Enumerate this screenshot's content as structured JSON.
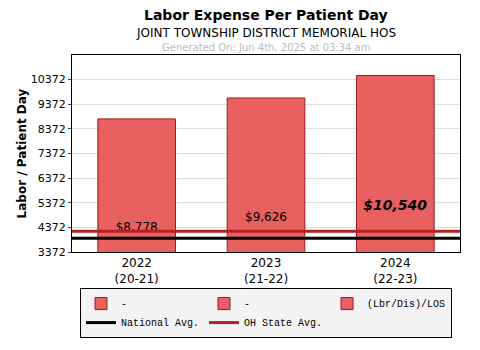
{
  "chart_data": {
    "type": "bar",
    "title": "Labor Expense Per Patient Day",
    "subtitle": "JOINT TOWNSHIP DISTRICT MEMORIAL HOS",
    "annotations": [
      "Generated On: Jun 4th, 2025 at 03:34 am"
    ],
    "y_label": "Labor / Patient Day",
    "categories": [
      "2022\n(20-21)",
      "2023\n(21-22)",
      "2024\n(22-23)"
    ],
    "series": [
      {
        "name": "-",
        "color": "#e8605f",
        "values": [
          null,
          null,
          null
        ]
      },
      {
        "name": "-",
        "color": "#e8605f",
        "values": [
          null,
          null,
          null
        ]
      },
      {
        "name": "(Lbr/Dis)/LOS",
        "color": "#e8605f",
        "values": [
          8778,
          9626,
          10540
        ],
        "value_labels": [
          "$8,778",
          "$9,626",
          "$10,540"
        ]
      },
      {
        "name": "National Avg.",
        "type": "line",
        "color": "#000000",
        "values": [
          3932,
          3932,
          3932
        ]
      },
      {
        "name": "OH State Avg.",
        "type": "line",
        "color": "#b22222",
        "values": [
          4212,
          4212,
          4212
        ]
      }
    ],
    "ylim": [
      3372,
      11372
    ],
    "yticks": [
      3372,
      4372,
      5372,
      6372,
      7372,
      8372,
      9372,
      10372
    ],
    "grid": true,
    "data_labels": true,
    "legend": "bottom"
  }
}
